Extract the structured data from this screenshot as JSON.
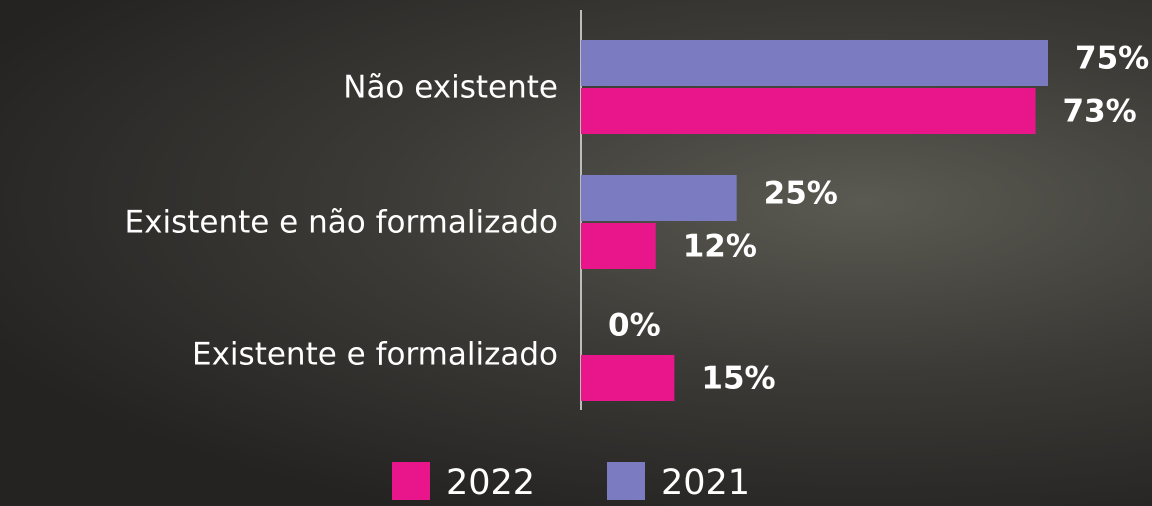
{
  "chart_data": {
    "type": "bar",
    "orientation": "horizontal",
    "categories": [
      "Não existente",
      "Existente e não formalizado",
      "Existente e formalizado"
    ],
    "series": [
      {
        "name": "2021",
        "color": "#7b7bc1",
        "values": [
          75,
          25,
          0
        ],
        "value_labels": [
          "75%",
          "25%",
          "0%"
        ]
      },
      {
        "name": "2022",
        "color": "#e8168a",
        "values": [
          73,
          12,
          15
        ],
        "value_labels": [
          "73%",
          "12%",
          "15%"
        ]
      }
    ],
    "legend_order": [
      1,
      0
    ],
    "legend": "bottom"
  }
}
